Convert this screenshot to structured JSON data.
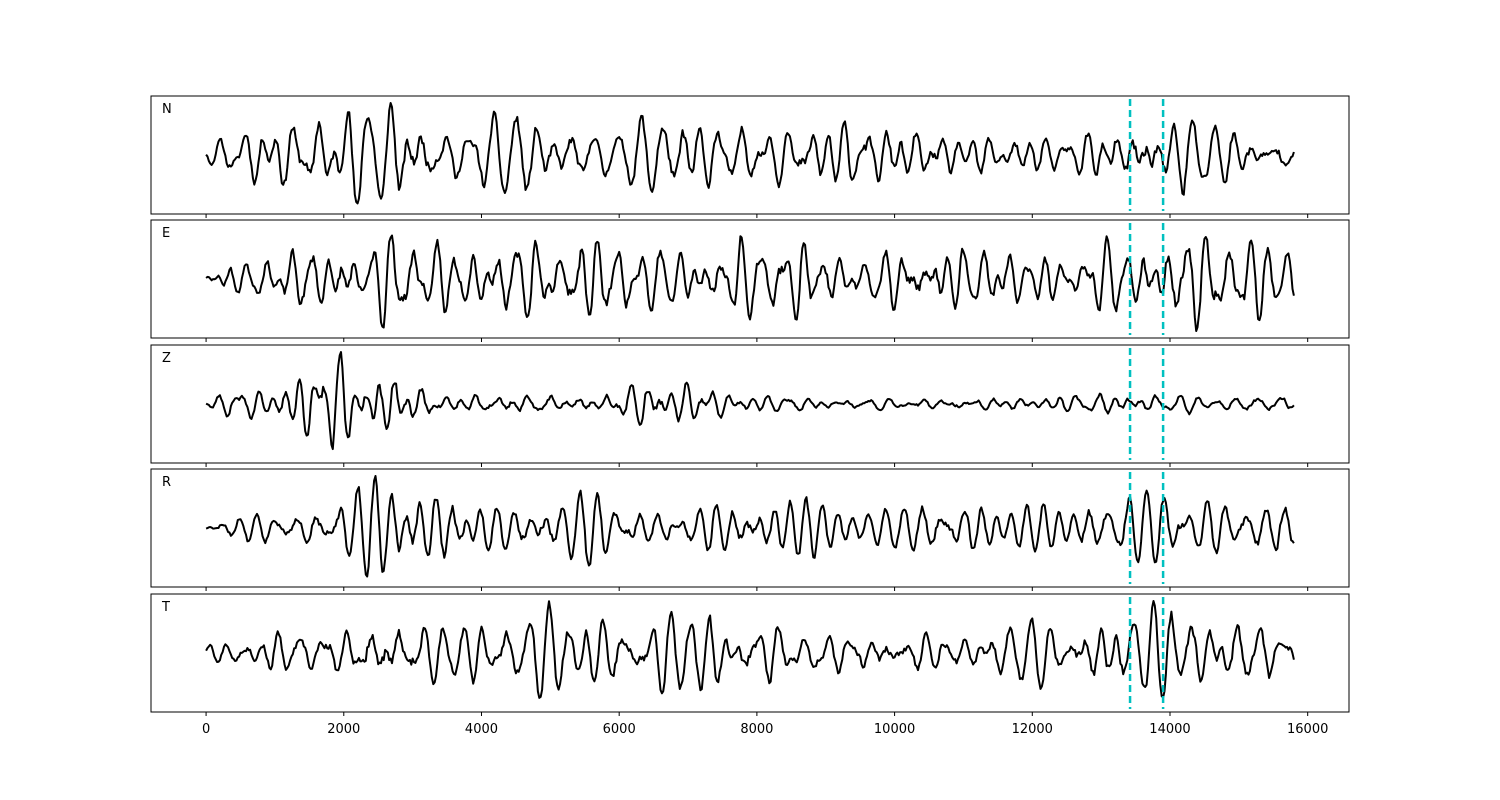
{
  "chart_data": {
    "type": "line",
    "layout": "5 stacked panels sharing x axis",
    "title": "",
    "xlabel": "",
    "ylabel": "",
    "xlim": [
      -800,
      16600
    ],
    "x_tick_values": [
      0,
      2000,
      4000,
      6000,
      8000,
      10000,
      12000,
      14000,
      16000
    ],
    "x_tick_labels": [
      "0",
      "2000",
      "4000",
      "6000",
      "8000",
      "10000",
      "12000",
      "14000",
      "16000"
    ],
    "x_range": [
      0,
      15800
    ],
    "sample_step": 20,
    "y_ticks_shown": false,
    "grid": false,
    "colors": {
      "trace": "#000000",
      "marker": "#00c0c0"
    },
    "vertical_markers": [
      {
        "x": 13420,
        "style": "dashed",
        "color": "#00c0c0"
      },
      {
        "x": 13900,
        "style": "dashed",
        "color": "#00c0c0"
      }
    ],
    "series": [
      {
        "name": "N",
        "seed": 11,
        "base": 0.32,
        "peak": 1.0,
        "envelope": [
          [
            0,
            0.15
          ],
          [
            300,
            0.35
          ],
          [
            1000,
            0.7
          ],
          [
            2500,
            1.0
          ],
          [
            3500,
            0.7
          ],
          [
            4600,
            0.75
          ],
          [
            6000,
            0.6
          ],
          [
            7000,
            0.9
          ],
          [
            8000,
            0.55
          ],
          [
            9000,
            0.75
          ],
          [
            10000,
            0.6
          ],
          [
            11000,
            0.5
          ],
          [
            12500,
            0.4
          ],
          [
            13500,
            0.9
          ],
          [
            14600,
            0.8
          ],
          [
            15800,
            0.55
          ]
        ]
      },
      {
        "name": "E",
        "seed": 23,
        "base": 0.3,
        "peak": 1.0,
        "envelope": [
          [
            0,
            0.3
          ],
          [
            800,
            0.45
          ],
          [
            2000,
            0.9
          ],
          [
            3000,
            0.9
          ],
          [
            4500,
            0.65
          ],
          [
            5600,
            0.95
          ],
          [
            6500,
            0.6
          ],
          [
            8500,
            0.95
          ],
          [
            9500,
            0.45
          ],
          [
            10600,
            0.9
          ],
          [
            12500,
            0.55
          ],
          [
            13600,
            0.95
          ],
          [
            15000,
            0.9
          ],
          [
            15800,
            0.75
          ]
        ]
      },
      {
        "name": "Z",
        "seed": 37,
        "base": 0.14,
        "peak": 1.0,
        "envelope": [
          [
            0,
            0.05
          ],
          [
            400,
            0.4
          ],
          [
            1000,
            0.3
          ],
          [
            1400,
            0.85
          ],
          [
            2100,
            1.0
          ],
          [
            2500,
            0.8
          ],
          [
            3500,
            0.3
          ],
          [
            4500,
            0.35
          ],
          [
            5500,
            0.25
          ],
          [
            6500,
            0.55
          ],
          [
            7000,
            0.5
          ],
          [
            8000,
            0.2
          ],
          [
            10000,
            0.2
          ],
          [
            12000,
            0.2
          ],
          [
            13500,
            0.3
          ],
          [
            15000,
            0.2
          ],
          [
            15700,
            0.35
          ],
          [
            15800,
            0.2
          ]
        ]
      },
      {
        "name": "R",
        "seed": 51,
        "base": 0.32,
        "peak": 1.0,
        "envelope": [
          [
            0,
            0.3
          ],
          [
            800,
            0.55
          ],
          [
            2000,
            0.8
          ],
          [
            2900,
            0.95
          ],
          [
            4500,
            0.75
          ],
          [
            5500,
            0.95
          ],
          [
            6500,
            0.6
          ],
          [
            8500,
            0.9
          ],
          [
            9500,
            0.45
          ],
          [
            10600,
            0.9
          ],
          [
            12000,
            0.6
          ],
          [
            13600,
            0.95
          ],
          [
            15000,
            0.75
          ],
          [
            15700,
            0.85
          ],
          [
            15800,
            0.7
          ]
        ]
      },
      {
        "name": "T",
        "seed": 67,
        "base": 0.32,
        "peak": 1.0,
        "envelope": [
          [
            0,
            0.15
          ],
          [
            700,
            0.5
          ],
          [
            2000,
            0.65
          ],
          [
            2500,
            1.0
          ],
          [
            3500,
            0.6
          ],
          [
            4600,
            0.75
          ],
          [
            6500,
            0.7
          ],
          [
            7500,
            0.9
          ],
          [
            9000,
            0.6
          ],
          [
            10000,
            0.5
          ],
          [
            12000,
            0.45
          ],
          [
            13600,
            0.95
          ],
          [
            14600,
            0.85
          ],
          [
            15800,
            0.5
          ]
        ]
      }
    ]
  }
}
